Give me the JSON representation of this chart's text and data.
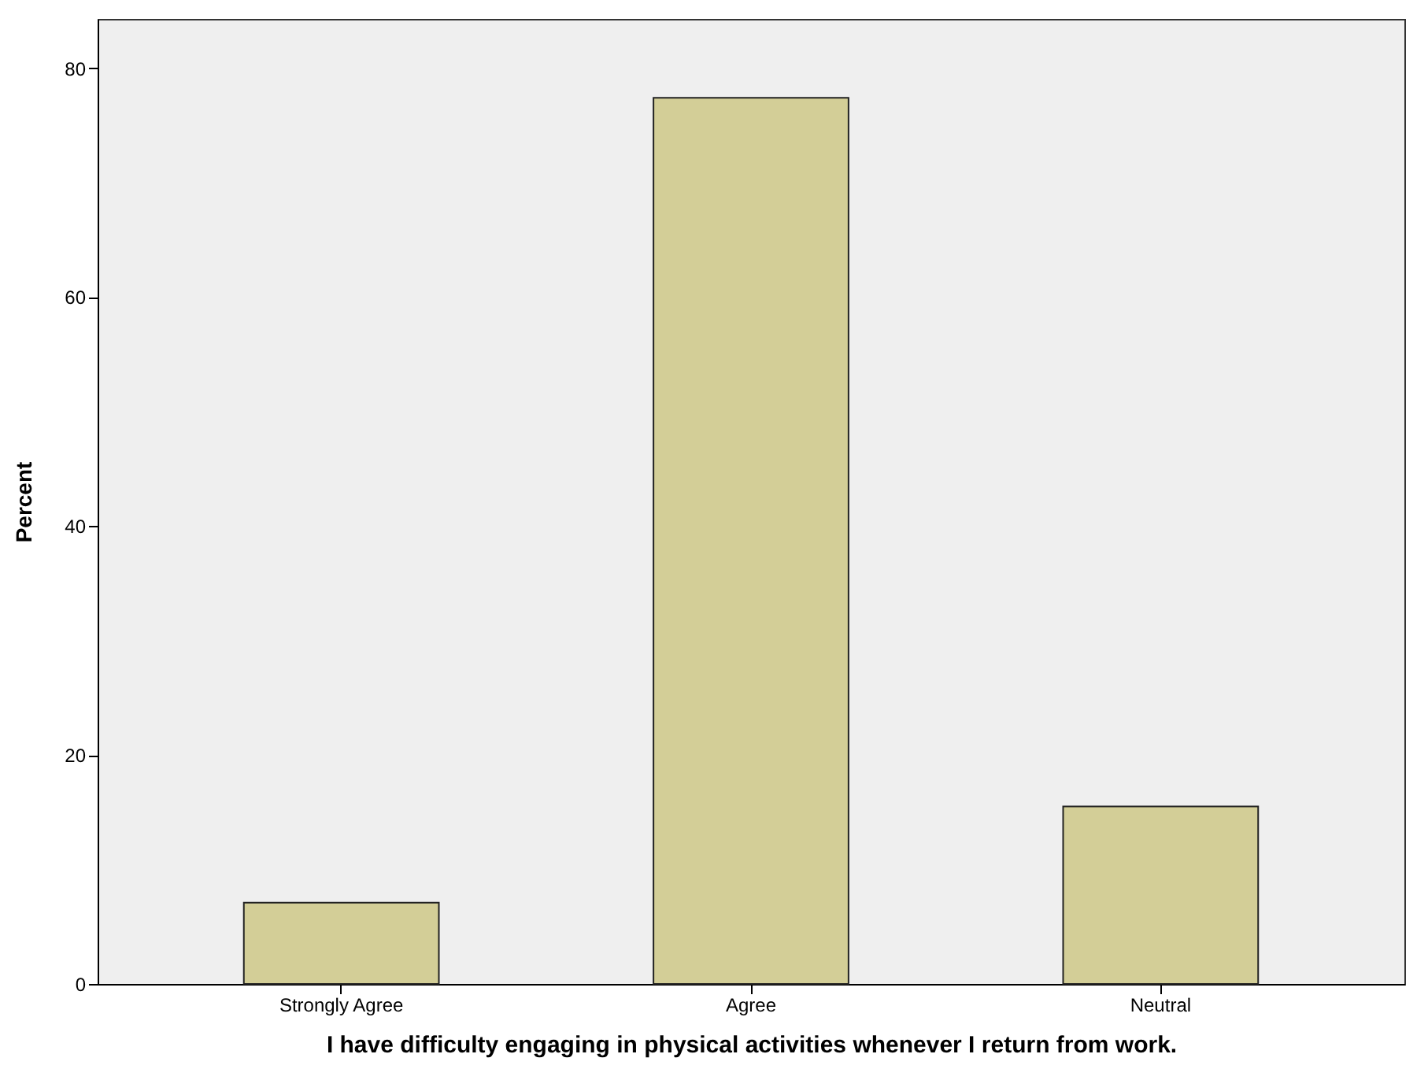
{
  "chart_data": {
    "type": "bar",
    "xlabel": "I have difficulty engaging in physical activities whenever I return from work.",
    "ylabel": "Percent",
    "categories": [
      "Strongly Agree",
      "Agree",
      "Neutral"
    ],
    "values": [
      7.1,
      77.4,
      15.5
    ],
    "color": "#d3ce97",
    "ylim": [
      0,
      84.3
    ],
    "yticks": [
      0,
      20,
      40,
      60,
      80
    ],
    "grid": false
  }
}
